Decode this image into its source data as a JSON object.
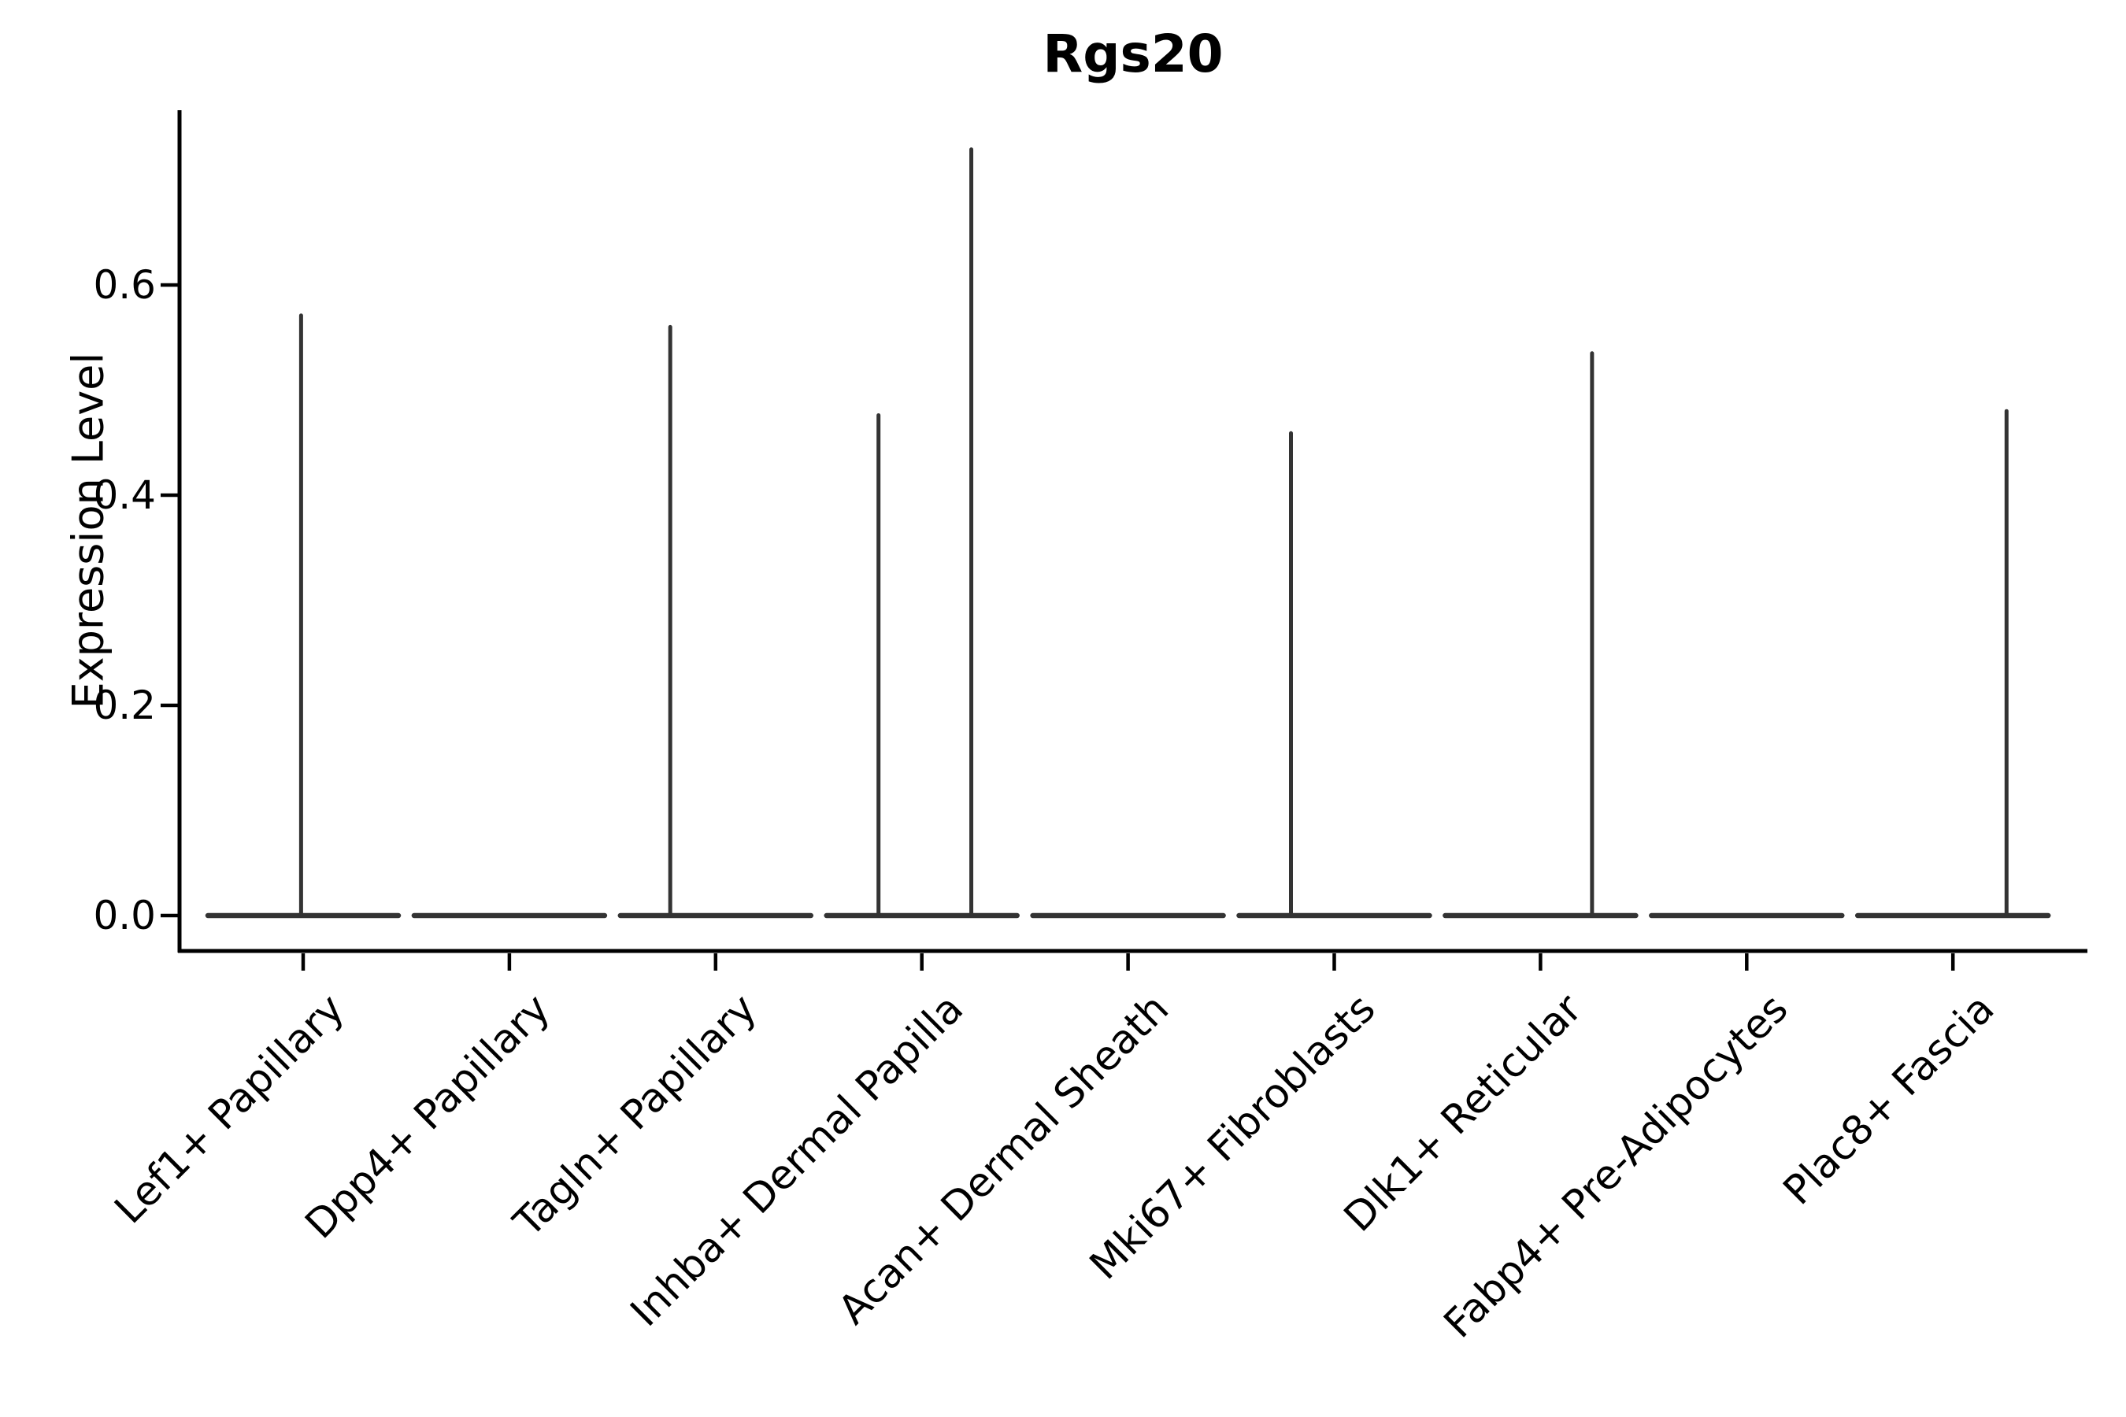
{
  "title": "Rgs20",
  "axes": {
    "ylabel": "Expression Level",
    "ytick_labels": [
      "0.0",
      "0.2",
      "0.4",
      "0.6"
    ]
  },
  "colors": {
    "background": "#ffffff",
    "spine": "#000000",
    "text": "#000000",
    "violin_stroke": "#333333"
  },
  "chart_data": {
    "type": "violin",
    "title": "Rgs20",
    "xlabel": "",
    "ylabel": "Expression Level",
    "yticks": [
      0.0,
      0.2,
      0.4,
      0.6
    ],
    "ylim": [
      -0.04,
      0.77
    ],
    "grid": false,
    "legend": null,
    "categories": [
      "Lef1+ Papillary",
      "Dpp4+ Papillary",
      "Tagln+ Papillary",
      "Inhba+ Dermal Papilla",
      "Acan+ Dermal Sheath",
      "Mki67+ Fibroblasts",
      "Dlk1+ Reticular",
      "Fabp4+ Pre-Adipocytes",
      "Plac8+ Fascia"
    ],
    "description": "Violin plot of Rgs20 expression; nearly all cells at 0 (flat violin bases) with thin density spikes up to the max expressed value in some clusters.",
    "base_halfwidth_frac": 0.462,
    "violins": [
      {
        "category": "Lef1+ Papillary",
        "max_expression": 0.571,
        "spikes": [
          {
            "offset_frac": -0.01,
            "value": 0.571
          }
        ]
      },
      {
        "category": "Dpp4+ Papillary",
        "max_expression": 0.0,
        "spikes": []
      },
      {
        "category": "Tagln+ Papillary",
        "max_expression": 0.56,
        "spikes": [
          {
            "offset_frac": -0.22,
            "value": 0.56
          }
        ]
      },
      {
        "category": "Inhba+ Dermal Papilla",
        "max_expression": 0.729,
        "spikes": [
          {
            "offset_frac": -0.21,
            "value": 0.476
          },
          {
            "offset_frac": 0.24,
            "value": 0.729
          }
        ]
      },
      {
        "category": "Acan+ Dermal Sheath",
        "max_expression": 0.0,
        "spikes": []
      },
      {
        "category": "Mki67+ Fibroblasts",
        "max_expression": 0.459,
        "spikes": [
          {
            "offset_frac": -0.21,
            "value": 0.459
          }
        ]
      },
      {
        "category": "Dlk1+ Reticular",
        "max_expression": 0.535,
        "spikes": [
          {
            "offset_frac": 0.25,
            "value": 0.535
          }
        ]
      },
      {
        "category": "Fabp4+ Pre-Adipocytes",
        "max_expression": 0.0,
        "spikes": []
      },
      {
        "category": "Plac8+ Fascia",
        "max_expression": 0.48,
        "spikes": [
          {
            "offset_frac": 0.26,
            "value": 0.48
          }
        ]
      }
    ]
  }
}
